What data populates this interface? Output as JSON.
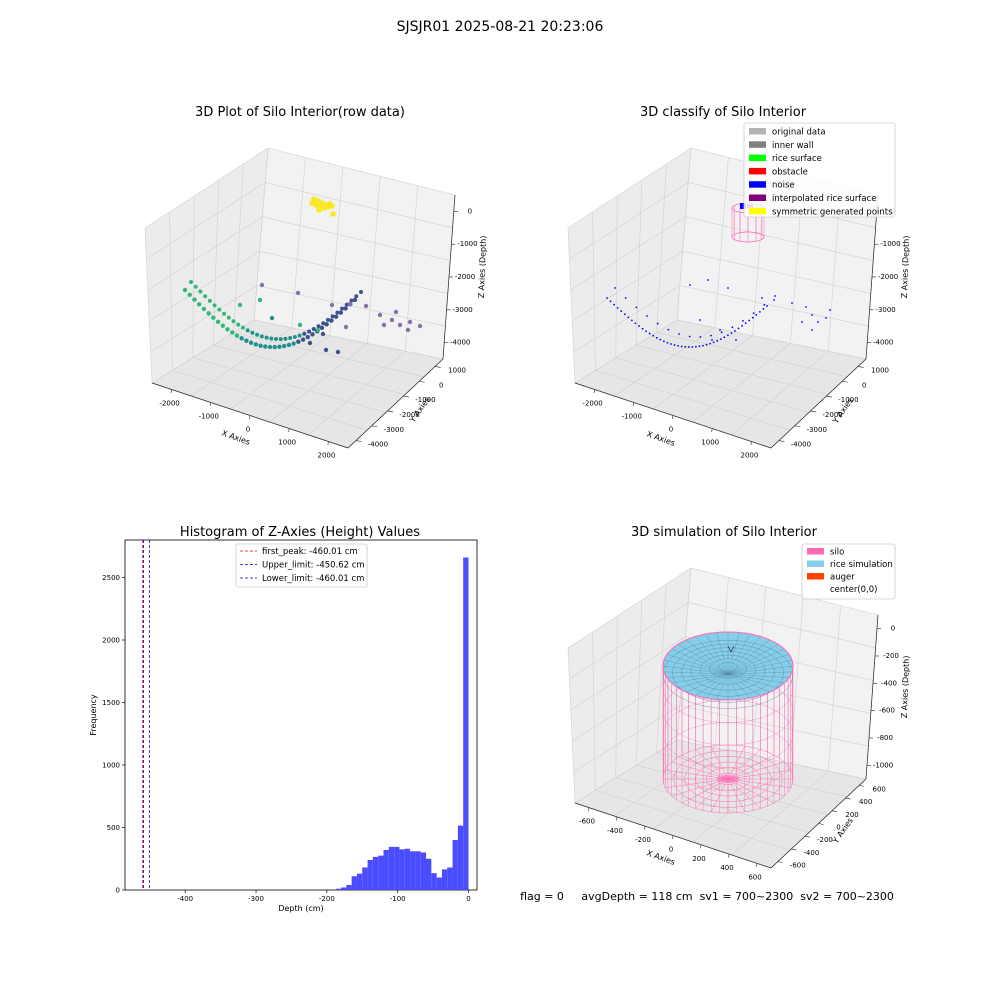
{
  "suptitle": "SJSJR01 2025-08-21 20:23:06",
  "colors": {
    "yellow_cluster": "#fde725",
    "teal": "#35b779",
    "dark_teal": "#21918c",
    "navy": "#3b528b",
    "purple": "#8b6fa8",
    "silo_pink": "#ff69b4",
    "rice_blue": "#87ceeb",
    "hist_blue": "#4b4bff"
  },
  "panel_row": {
    "title": "3D Plot of Silo Interior(row data)",
    "xlabel": "X Axies",
    "ylabel": "Y Axies",
    "zlabel": "Z Axies (Depth)",
    "x_ticks": [
      "-2000",
      "-1000",
      "0",
      "1000",
      "2000"
    ],
    "y_ticks": [
      "1000",
      "0",
      "-1000",
      "-2000",
      "-3000",
      "-4000"
    ],
    "z_ticks": [
      "0",
      "-1000",
      "-2000",
      "-3000",
      "-4000"
    ]
  },
  "panel_classify": {
    "title": "3D classify of Silo Interior",
    "xlabel": "X Axies",
    "ylabel": "Y Axies",
    "zlabel": "Z Axies (Depth)",
    "x_ticks": [
      "-2000",
      "-1000",
      "0",
      "1000",
      "2000"
    ],
    "y_ticks": [
      "1000",
      "0",
      "-1000",
      "-2000",
      "-3000",
      "-4000"
    ],
    "z_ticks": [
      "0",
      "-1000",
      "-2000",
      "-3000",
      "-4000"
    ],
    "legend": [
      {
        "label": "original data",
        "color": "#b3b3b3"
      },
      {
        "label": "inner wall",
        "color": "#808080"
      },
      {
        "label": "rice surface",
        "color": "#00ff00"
      },
      {
        "label": "obstacle",
        "color": "#ff0000"
      },
      {
        "label": "noise",
        "color": "#0000ff"
      },
      {
        "label": "interpolated rice surface",
        "color": "#800080"
      },
      {
        "label": "symmetric generated points",
        "color": "#ffff00"
      }
    ]
  },
  "panel_sim": {
    "title": "3D simulation of Silo Interior",
    "xlabel": "X Axies",
    "ylabel": "Y Axies",
    "zlabel": "Z Axies (Depth)",
    "x_ticks": [
      "-600",
      "-400",
      "-200",
      "0",
      "200",
      "400",
      "600"
    ],
    "y_ticks": [
      "600",
      "400",
      "200",
      "0",
      "-200",
      "-400",
      "-600"
    ],
    "z_ticks": [
      "0",
      "-200",
      "-400",
      "-600",
      "-800",
      "-1000"
    ],
    "legend": [
      {
        "label": "silo",
        "color": "#ff69b4"
      },
      {
        "label": "rice simulation",
        "color": "#87ceeb"
      },
      {
        "label": "auger",
        "color": "#ff4500"
      },
      {
        "label": "center(0,0)",
        "color": ""
      }
    ]
  },
  "footer": {
    "text": "flag = 0     avgDepth = 118 cm  sv1 = 700~2300  sv2 = 700~2300"
  },
  "chart_data": [
    {
      "type": "bar",
      "title": "Histogram of Z-Axies (Height) Values",
      "xlabel": "Depth (cm)",
      "ylabel": "Frequency",
      "xlim": [
        -485,
        12
      ],
      "ylim": [
        0,
        2800
      ],
      "x_ticks": [
        -400,
        -300,
        -200,
        -100,
        0
      ],
      "y_ticks": [
        0,
        500,
        1000,
        1500,
        2000,
        2500
      ],
      "bin_width": 7.5,
      "bins": [
        [
          -232.5,
          10
        ],
        [
          -225,
          20
        ],
        [
          -217.5,
          40
        ],
        [
          -210,
          110
        ],
        [
          -202.5,
          130
        ],
        [
          -195,
          180
        ],
        [
          -187.5,
          240
        ],
        [
          -180,
          265
        ],
        [
          -172.5,
          275
        ],
        [
          -165,
          320
        ],
        [
          -157.5,
          345
        ],
        [
          -150,
          345
        ],
        [
          -142.5,
          325
        ],
        [
          -135,
          330
        ],
        [
          -127.5,
          310
        ],
        [
          -120,
          310
        ],
        [
          -112.5,
          300
        ],
        [
          -105,
          250
        ],
        [
          -97.5,
          135
        ],
        [
          -90,
          100
        ],
        [
          -82.5,
          165
        ],
        [
          -75,
          180
        ],
        [
          -67.5,
          400
        ],
        [
          -60,
          515
        ],
        [
          -52.5,
          2660
        ]
      ],
      "vlines": [
        {
          "label": "first_peak: -460.01 cm",
          "x": -460.01,
          "color": "#ff0000"
        },
        {
          "label": "Upper_limit: -450.62 cm",
          "x": -450.62,
          "color": "#0000cc"
        },
        {
          "label": "Lower_limit: -460.01 cm",
          "x": -460.01,
          "color": "#0000cc"
        }
      ]
    }
  ]
}
